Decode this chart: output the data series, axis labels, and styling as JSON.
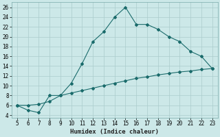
{
  "xlabel": "Humidex (Indice chaleur)",
  "bg_color": "#cce8e8",
  "grid_color": "#aacccc",
  "line_color": "#1a6b6b",
  "xlim": [
    4.5,
    23.5
  ],
  "ylim": [
    3.5,
    27
  ],
  "xticks": [
    5,
    6,
    7,
    8,
    9,
    10,
    11,
    12,
    13,
    14,
    15,
    16,
    17,
    18,
    19,
    20,
    21,
    22,
    23
  ],
  "yticks": [
    4,
    6,
    8,
    10,
    12,
    14,
    16,
    18,
    20,
    22,
    24,
    26
  ],
  "line1_x": [
    5,
    6,
    7,
    8,
    9,
    10,
    11,
    12,
    13,
    14,
    15,
    16,
    17,
    18,
    19,
    20,
    21,
    22,
    23
  ],
  "line1_y": [
    6,
    5,
    4.5,
    8,
    8,
    10.5,
    14.5,
    19,
    21,
    24,
    26,
    22.5,
    22.5,
    21.5,
    20,
    19,
    17,
    16,
    13.5
  ],
  "line2_x": [
    5,
    6,
    7,
    8,
    9,
    10,
    11,
    12,
    13,
    14,
    15,
    16,
    17,
    18,
    19,
    20,
    21,
    22,
    23
  ],
  "line2_y": [
    6,
    6.0,
    6.2,
    6.8,
    8.0,
    8.5,
    9.0,
    9.5,
    10.0,
    10.5,
    11.0,
    11.5,
    11.8,
    12.2,
    12.5,
    12.8,
    13.0,
    13.3,
    13.5
  ],
  "tick_fontsize": 5.5,
  "xlabel_fontsize": 6.5
}
